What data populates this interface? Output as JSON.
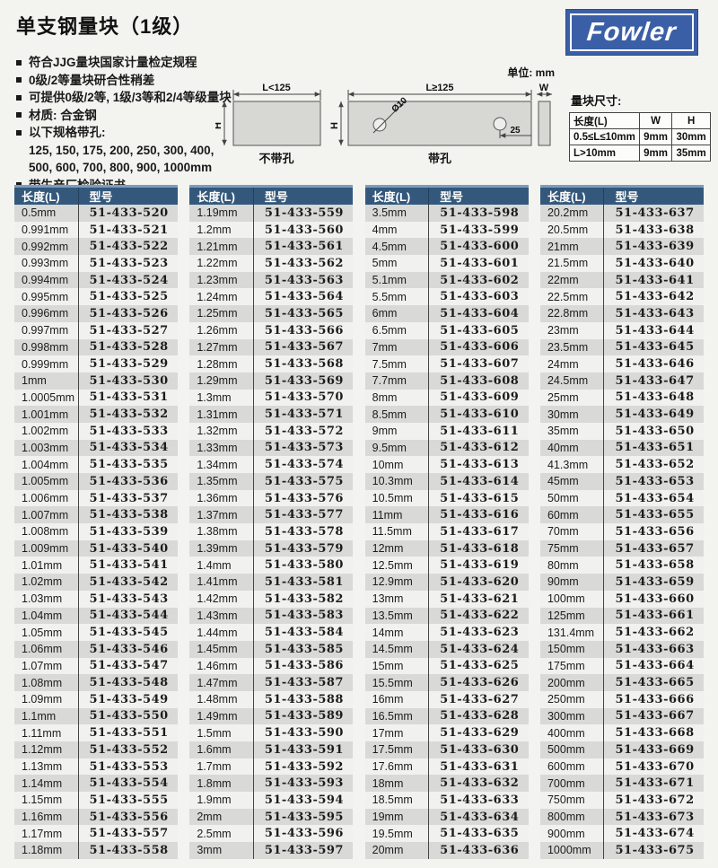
{
  "page": {
    "title": "单支钢量块（1级）",
    "unit_label": "单位: mm"
  },
  "logo": {
    "text": "Fowler",
    "bg_color": "#3b5fa6"
  },
  "colors": {
    "table_header_bg": "#33587c",
    "table_header_top_edge": "#7d9cbd",
    "row_odd": "#d9d9d7",
    "row_even": "#f1f1ef",
    "logo_blue": "#3b5fa6"
  },
  "features": [
    {
      "bullet": true,
      "text": "符合JJG量块国家计量检定规程"
    },
    {
      "bullet": true,
      "text": "0级/2等量块研合性稍差"
    },
    {
      "bullet": true,
      "text": "可提供0级/2等, 1级/3等和2/4等级量块"
    },
    {
      "bullet": true,
      "text": "材质: 合金钢"
    },
    {
      "bullet": true,
      "text": "以下规格带孔:"
    },
    {
      "bullet": false,
      "text": "125, 150, 175, 200, 250, 300, 400,"
    },
    {
      "bullet": false,
      "text": "500, 600, 700, 800, 900, 1000mm"
    },
    {
      "bullet": true,
      "text": "带生产厂检验证书"
    }
  ],
  "diagram": {
    "left_dim": "L<125",
    "right_dim": "L≥125",
    "height_label": "H",
    "width_label": "W",
    "hole_dia": "Ø10",
    "hole_offset": "25",
    "left_block_label": "不带孔",
    "right_block_label": "带孔"
  },
  "size_table": {
    "title": "量块尺寸:",
    "headers": [
      "长度(L)",
      "W",
      "H"
    ],
    "rows": [
      [
        "0.5≤L≤10mm",
        "9mm",
        "30mm"
      ],
      [
        "L>10mm",
        "9mm",
        "35mm"
      ]
    ]
  },
  "spec_tables": {
    "headers": [
      "长度(L)",
      "型号"
    ],
    "tables": [
      {
        "rows": [
          [
            "0.5mm",
            "51-433-520"
          ],
          [
            "0.991mm",
            "51-433-521"
          ],
          [
            "0.992mm",
            "51-433-522"
          ],
          [
            "0.993mm",
            "51-433-523"
          ],
          [
            "0.994mm",
            "51-433-524"
          ],
          [
            "0.995mm",
            "51-433-525"
          ],
          [
            "0.996mm",
            "51-433-526"
          ],
          [
            "0.997mm",
            "51-433-527"
          ],
          [
            "0.998mm",
            "51-433-528"
          ],
          [
            "0.999mm",
            "51-433-529"
          ],
          [
            "1mm",
            "51-433-530"
          ],
          [
            "1.0005mm",
            "51-433-531"
          ],
          [
            "1.001mm",
            "51-433-532"
          ],
          [
            "1.002mm",
            "51-433-533"
          ],
          [
            "1.003mm",
            "51-433-534"
          ],
          [
            "1.004mm",
            "51-433-535"
          ],
          [
            "1.005mm",
            "51-433-536"
          ],
          [
            "1.006mm",
            "51-433-537"
          ],
          [
            "1.007mm",
            "51-433-538"
          ],
          [
            "1.008mm",
            "51-433-539"
          ],
          [
            "1.009mm",
            "51-433-540"
          ],
          [
            "1.01mm",
            "51-433-541"
          ],
          [
            "1.02mm",
            "51-433-542"
          ],
          [
            "1.03mm",
            "51-433-543"
          ],
          [
            "1.04mm",
            "51-433-544"
          ],
          [
            "1.05mm",
            "51-433-545"
          ],
          [
            "1.06mm",
            "51-433-546"
          ],
          [
            "1.07mm",
            "51-433-547"
          ],
          [
            "1.08mm",
            "51-433-548"
          ],
          [
            "1.09mm",
            "51-433-549"
          ],
          [
            "1.1mm",
            "51-433-550"
          ],
          [
            "1.11mm",
            "51-433-551"
          ],
          [
            "1.12mm",
            "51-433-552"
          ],
          [
            "1.13mm",
            "51-433-553"
          ],
          [
            "1.14mm",
            "51-433-554"
          ],
          [
            "1.15mm",
            "51-433-555"
          ],
          [
            "1.16mm",
            "51-433-556"
          ],
          [
            "1.17mm",
            "51-433-557"
          ],
          [
            "1.18mm",
            "51-433-558"
          ]
        ]
      },
      {
        "rows": [
          [
            "1.19mm",
            "51-433-559"
          ],
          [
            "1.2mm",
            "51-433-560"
          ],
          [
            "1.21mm",
            "51-433-561"
          ],
          [
            "1.22mm",
            "51-433-562"
          ],
          [
            "1.23mm",
            "51-433-563"
          ],
          [
            "1.24mm",
            "51-433-564"
          ],
          [
            "1.25mm",
            "51-433-565"
          ],
          [
            "1.26mm",
            "51-433-566"
          ],
          [
            "1.27mm",
            "51-433-567"
          ],
          [
            "1.28mm",
            "51-433-568"
          ],
          [
            "1.29mm",
            "51-433-569"
          ],
          [
            "1.3mm",
            "51-433-570"
          ],
          [
            "1.31mm",
            "51-433-571"
          ],
          [
            "1.32mm",
            "51-433-572"
          ],
          [
            "1.33mm",
            "51-433-573"
          ],
          [
            "1.34mm",
            "51-433-574"
          ],
          [
            "1.35mm",
            "51-433-575"
          ],
          [
            "1.36mm",
            "51-433-576"
          ],
          [
            "1.37mm",
            "51-433-577"
          ],
          [
            "1.38mm",
            "51-433-578"
          ],
          [
            "1.39mm",
            "51-433-579"
          ],
          [
            "1.4mm",
            "51-433-580"
          ],
          [
            "1.41mm",
            "51-433-581"
          ],
          [
            "1.42mm",
            "51-433-582"
          ],
          [
            "1.43mm",
            "51-433-583"
          ],
          [
            "1.44mm",
            "51-433-584"
          ],
          [
            "1.45mm",
            "51-433-585"
          ],
          [
            "1.46mm",
            "51-433-586"
          ],
          [
            "1.47mm",
            "51-433-587"
          ],
          [
            "1.48mm",
            "51-433-588"
          ],
          [
            "1.49mm",
            "51-433-589"
          ],
          [
            "1.5mm",
            "51-433-590"
          ],
          [
            "1.6mm",
            "51-433-591"
          ],
          [
            "1.7mm",
            "51-433-592"
          ],
          [
            "1.8mm",
            "51-433-593"
          ],
          [
            "1.9mm",
            "51-433-594"
          ],
          [
            "2mm",
            "51-433-595"
          ],
          [
            "2.5mm",
            "51-433-596"
          ],
          [
            "3mm",
            "51-433-597"
          ]
        ]
      },
      {
        "rows": [
          [
            "3.5mm",
            "51-433-598"
          ],
          [
            "4mm",
            "51-433-599"
          ],
          [
            "4.5mm",
            "51-433-600"
          ],
          [
            "5mm",
            "51-433-601"
          ],
          [
            "5.1mm",
            "51-433-602"
          ],
          [
            "5.5mm",
            "51-433-603"
          ],
          [
            "6mm",
            "51-433-604"
          ],
          [
            "6.5mm",
            "51-433-605"
          ],
          [
            "7mm",
            "51-433-606"
          ],
          [
            "7.5mm",
            "51-433-607"
          ],
          [
            "7.7mm",
            "51-433-608"
          ],
          [
            "8mm",
            "51-433-609"
          ],
          [
            "8.5mm",
            "51-433-610"
          ],
          [
            "9mm",
            "51-433-611"
          ],
          [
            "9.5mm",
            "51-433-612"
          ],
          [
            "10mm",
            "51-433-613"
          ],
          [
            "10.3mm",
            "51-433-614"
          ],
          [
            "10.5mm",
            "51-433-615"
          ],
          [
            "11mm",
            "51-433-616"
          ],
          [
            "11.5mm",
            "51-433-617"
          ],
          [
            "12mm",
            "51-433-618"
          ],
          [
            "12.5mm",
            "51-433-619"
          ],
          [
            "12.9mm",
            "51-433-620"
          ],
          [
            "13mm",
            "51-433-621"
          ],
          [
            "13.5mm",
            "51-433-622"
          ],
          [
            "14mm",
            "51-433-623"
          ],
          [
            "14.5mm",
            "51-433-624"
          ],
          [
            "15mm",
            "51-433-625"
          ],
          [
            "15.5mm",
            "51-433-626"
          ],
          [
            "16mm",
            "51-433-627"
          ],
          [
            "16.5mm",
            "51-433-628"
          ],
          [
            "17mm",
            "51-433-629"
          ],
          [
            "17.5mm",
            "51-433-630"
          ],
          [
            "17.6mm",
            "51-433-631"
          ],
          [
            "18mm",
            "51-433-632"
          ],
          [
            "18.5mm",
            "51-433-633"
          ],
          [
            "19mm",
            "51-433-634"
          ],
          [
            "19.5mm",
            "51-433-635"
          ],
          [
            "20mm",
            "51-433-636"
          ]
        ]
      },
      {
        "rows": [
          [
            "20.2mm",
            "51-433-637"
          ],
          [
            "20.5mm",
            "51-433-638"
          ],
          [
            "21mm",
            "51-433-639"
          ],
          [
            "21.5mm",
            "51-433-640"
          ],
          [
            "22mm",
            "51-433-641"
          ],
          [
            "22.5mm",
            "51-433-642"
          ],
          [
            "22.8mm",
            "51-433-643"
          ],
          [
            "23mm",
            "51-433-644"
          ],
          [
            "23.5mm",
            "51-433-645"
          ],
          [
            "24mm",
            "51-433-646"
          ],
          [
            "24.5mm",
            "51-433-647"
          ],
          [
            "25mm",
            "51-433-648"
          ],
          [
            "30mm",
            "51-433-649"
          ],
          [
            "35mm",
            "51-433-650"
          ],
          [
            "40mm",
            "51-433-651"
          ],
          [
            "41.3mm",
            "51-433-652"
          ],
          [
            "45mm",
            "51-433-653"
          ],
          [
            "50mm",
            "51-433-654"
          ],
          [
            "60mm",
            "51-433-655"
          ],
          [
            "70mm",
            "51-433-656"
          ],
          [
            "75mm",
            "51-433-657"
          ],
          [
            "80mm",
            "51-433-658"
          ],
          [
            "90mm",
            "51-433-659"
          ],
          [
            "100mm",
            "51-433-660"
          ],
          [
            "125mm",
            "51-433-661"
          ],
          [
            "131.4mm",
            "51-433-662"
          ],
          [
            "150mm",
            "51-433-663"
          ],
          [
            "175mm",
            "51-433-664"
          ],
          [
            "200mm",
            "51-433-665"
          ],
          [
            "250mm",
            "51-433-666"
          ],
          [
            "300mm",
            "51-433-667"
          ],
          [
            "400mm",
            "51-433-668"
          ],
          [
            "500mm",
            "51-433-669"
          ],
          [
            "600mm",
            "51-433-670"
          ],
          [
            "700mm",
            "51-433-671"
          ],
          [
            "750mm",
            "51-433-672"
          ],
          [
            "800mm",
            "51-433-673"
          ],
          [
            "900mm",
            "51-433-674"
          ],
          [
            "1000mm",
            "51-433-675"
          ]
        ]
      }
    ]
  }
}
